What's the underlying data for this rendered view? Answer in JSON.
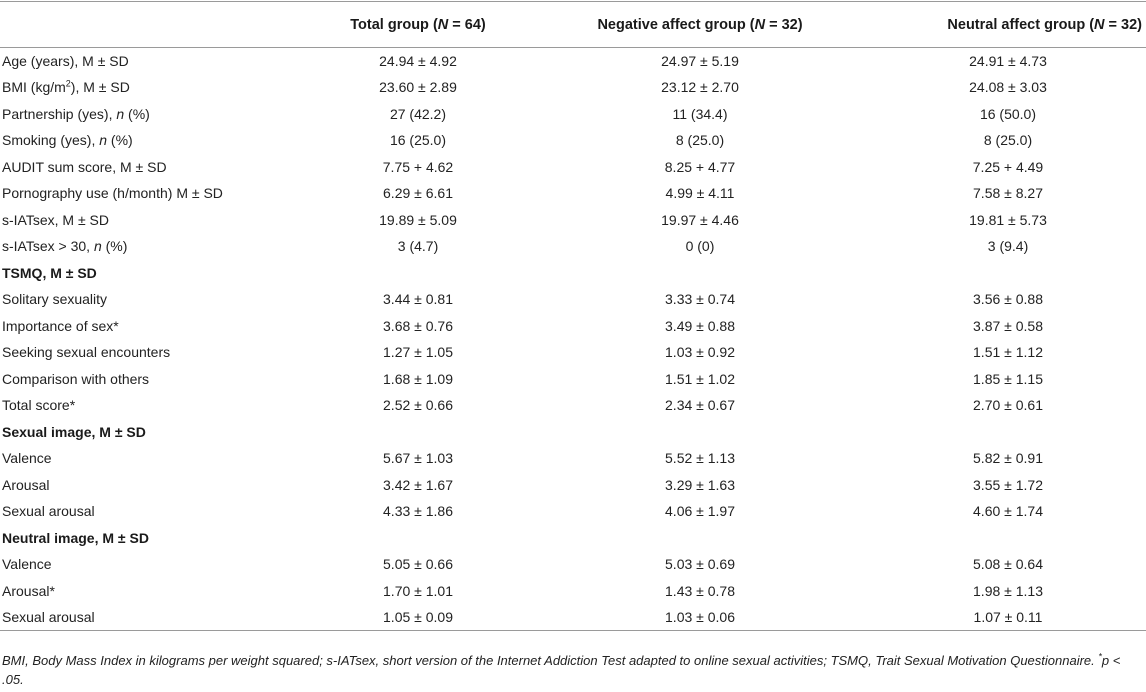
{
  "table": {
    "headers": [
      "",
      "Total group (N = 64)",
      "Negative affect group (N = 32)",
      "Neutral affect group (N = 32)"
    ],
    "rows": [
      {
        "label": "Age (years), M ± SD",
        "v1": "24.94 ± 4.92",
        "v2": "24.97 ± 5.19",
        "v3": "24.91 ± 4.73"
      },
      {
        "label": "BMI (kg/m2), M ± SD",
        "v1": "23.60 ± 2.89",
        "v2": "23.12 ± 2.70",
        "v3": "24.08 ± 3.03"
      },
      {
        "label": "Partnership (yes), n (%)",
        "v1": "27 (42.2)",
        "v2": "11 (34.4)",
        "v3": "16 (50.0)"
      },
      {
        "label": "Smoking (yes), n (%)",
        "v1": "16 (25.0)",
        "v2": "8 (25.0)",
        "v3": "8 (25.0)"
      },
      {
        "label": "AUDIT sum score, M ± SD",
        "v1": "7.75 + 4.62",
        "v2": "8.25 + 4.77",
        "v3": "7.25 + 4.49"
      },
      {
        "label": "Pornography use (h/month) M ± SD",
        "v1": "6.29 ± 6.61",
        "v2": "4.99 ± 4.11",
        "v3": "7.58 ± 8.27"
      },
      {
        "label": "s-IATsex, M ± SD",
        "v1": "19.89 ± 5.09",
        "v2": "19.97 ± 4.46",
        "v3": "19.81 ± 5.73"
      },
      {
        "label": "s-IATsex > 30, n (%)",
        "v1": "3 (4.7)",
        "v2": "0 (0)",
        "v3": "3 (9.4)"
      },
      {
        "label": "TSMQ, M ± SD",
        "section": true
      },
      {
        "label": "Solitary sexuality",
        "v1": "3.44 ± 0.81",
        "v2": "3.33 ± 0.74",
        "v3": "3.56 ± 0.88"
      },
      {
        "label": "Importance of sex*",
        "v1": "3.68 ± 0.76",
        "v2": "3.49 ± 0.88",
        "v3": "3.87 ± 0.58"
      },
      {
        "label": "Seeking sexual encounters",
        "v1": "1.27 ± 1.05",
        "v2": "1.03 ± 0.92",
        "v3": "1.51 ± 1.12"
      },
      {
        "label": "Comparison with others",
        "v1": "1.68 ± 1.09",
        "v2": "1.51 ± 1.02",
        "v3": "1.85 ± 1.15"
      },
      {
        "label": "Total score*",
        "v1": "2.52 ± 0.66",
        "v2": "2.34 ± 0.67",
        "v3": "2.70 ± 0.61"
      },
      {
        "label": "Sexual image, M ± SD",
        "section": true
      },
      {
        "label": "Valence",
        "v1": "5.67 ± 1.03",
        "v2": "5.52 ± 1.13",
        "v3": "5.82 ± 0.91"
      },
      {
        "label": "Arousal",
        "v1": "3.42 ± 1.67",
        "v2": "3.29 ± 1.63",
        "v3": "3.55 ± 1.72"
      },
      {
        "label": "Sexual arousal",
        "v1": "4.33 ± 1.86",
        "v2": "4.06 ± 1.97",
        "v3": "4.60 ± 1.74"
      },
      {
        "label": "Neutral image, M ± SD",
        "section": true
      },
      {
        "label": "Valence",
        "v1": "5.05 ± 0.66",
        "v2": "5.03 ± 0.69",
        "v3": "5.08 ± 0.64"
      },
      {
        "label": "Arousal*",
        "v1": "1.70 ± 1.01",
        "v2": "1.43 ± 0.78",
        "v3": "1.98 ± 1.13"
      },
      {
        "label": "Sexual arousal",
        "v1": "1.05 ± 0.09",
        "v2": "1.03 ± 0.06",
        "v3": "1.07 ± 0.11"
      }
    ]
  },
  "footnote": "BMI, Body Mass Index in kilograms per weight squared; s-IATsex, short version of the Internet Addiction Test adapted to online sexual activities; TSMQ, Trait Sexual Motivation Questionnaire. *p < .05."
}
